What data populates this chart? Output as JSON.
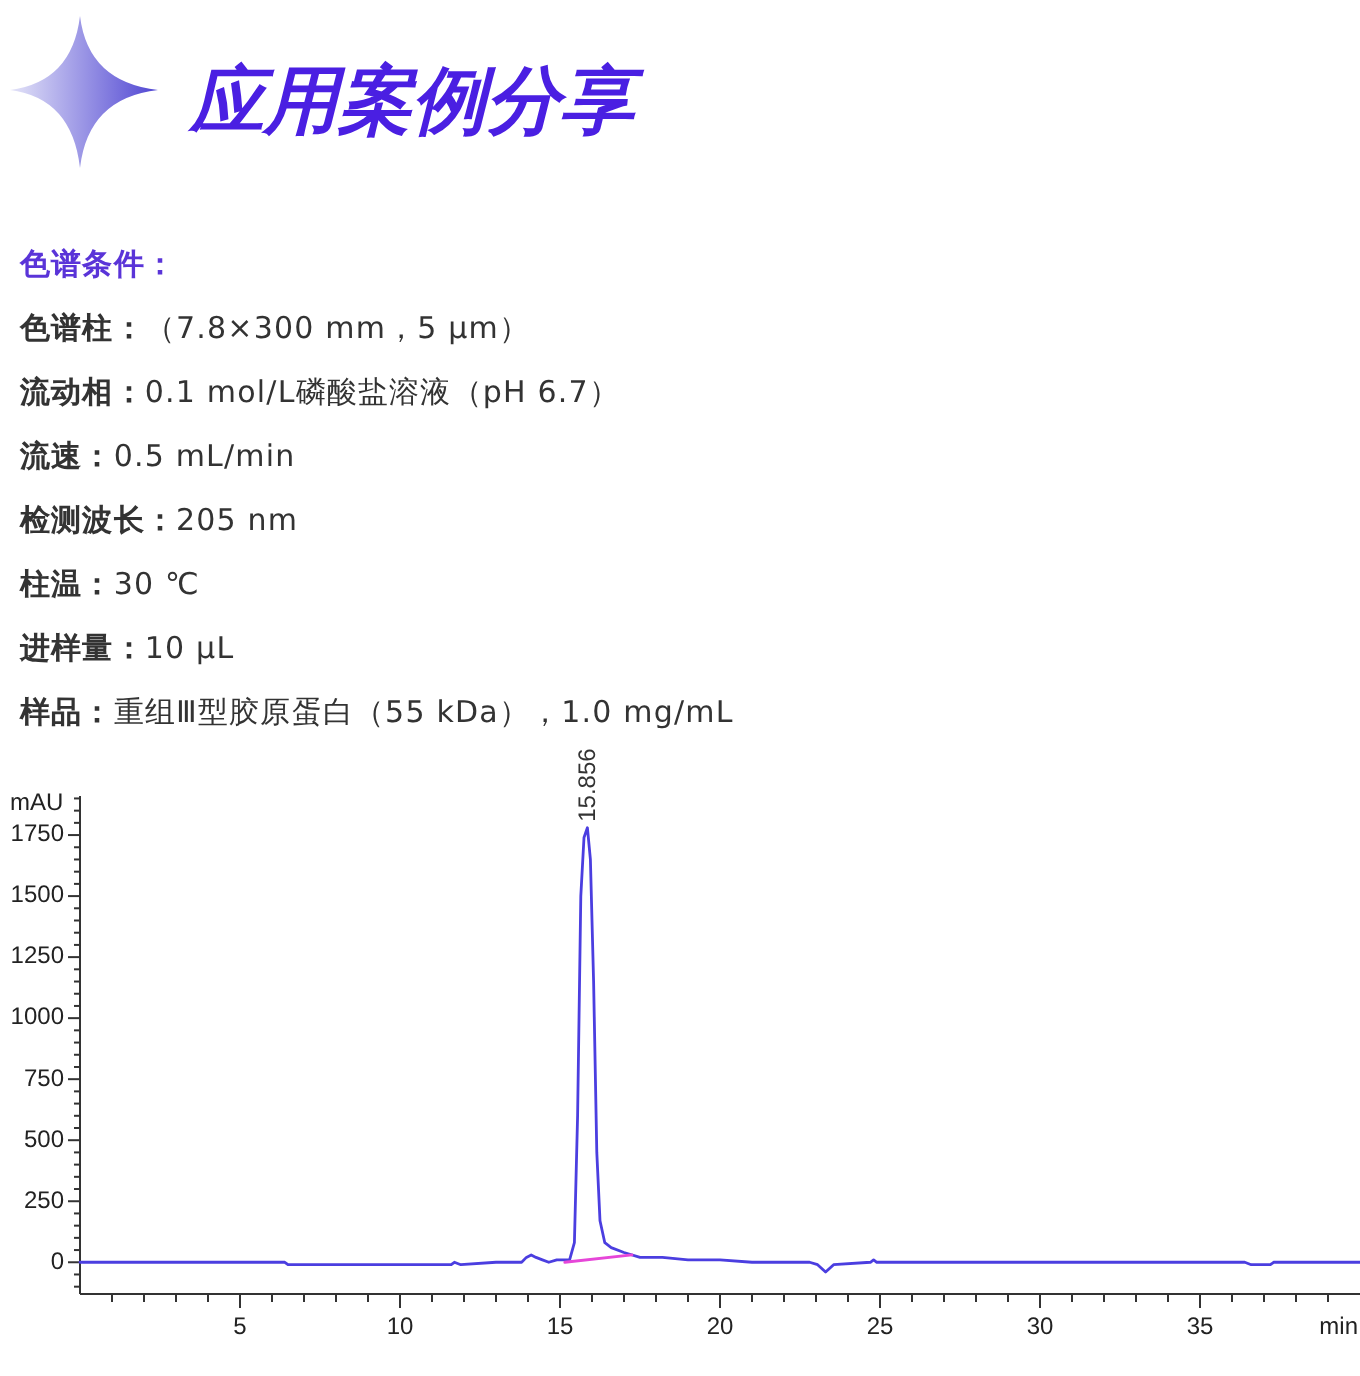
{
  "chart_data": {
    "type": "line",
    "title": "应用案例分享",
    "subtitle": "色谱条件：",
    "annotations": [
      "色谱柱：（7.8×300 mm，5 μm）",
      "流动相：0.1 mol/L磷酸盐溶液（pH 6.7）",
      "流速：0.5 mL/min",
      "检测波长：205 nm",
      "柱温：30 ℃",
      "进样量：10 μL",
      "样品：重组Ⅲ型胶原蛋白（55 kDa），1.0 mg/mL",
      {
        "text": "15.856",
        "x": 15.856,
        "y": 1780
      }
    ],
    "xlabel": "min",
    "ylabel": "mAU",
    "xlim": [
      0,
      40
    ],
    "ylim": [
      -130,
      1910
    ],
    "xticks": [
      {
        "value": 1,
        "label": null
      },
      {
        "value": 2,
        "label": null
      },
      {
        "value": 3,
        "label": null
      },
      {
        "value": 4,
        "label": null
      },
      5,
      {
        "value": 6,
        "label": null
      },
      {
        "value": 7,
        "label": null
      },
      {
        "value": 8,
        "label": null
      },
      {
        "value": 9,
        "label": null
      },
      10,
      {
        "value": 11,
        "label": null
      },
      {
        "value": 12,
        "label": null
      },
      {
        "value": 13,
        "label": null
      },
      {
        "value": 14,
        "label": null
      },
      15,
      {
        "value": 16,
        "label": null
      },
      {
        "value": 17,
        "label": null
      },
      {
        "value": 18,
        "label": null
      },
      {
        "value": 19,
        "label": null
      },
      20,
      {
        "value": 21,
        "label": null
      },
      {
        "value": 22,
        "label": null
      },
      {
        "value": 23,
        "label": null
      },
      {
        "value": 24,
        "label": null
      },
      25,
      {
        "value": 26,
        "label": null
      },
      {
        "value": 27,
        "label": null
      },
      {
        "value": 28,
        "label": null
      },
      {
        "value": 29,
        "label": null
      },
      30,
      {
        "value": 31,
        "label": null
      },
      {
        "value": 32,
        "label": null
      },
      {
        "value": 33,
        "label": null
      },
      {
        "value": 34,
        "label": null
      },
      35,
      {
        "value": 36,
        "label": null
      },
      {
        "value": 37,
        "label": null
      },
      {
        "value": 38,
        "label": null
      },
      {
        "value": 39,
        "label": null
      }
    ],
    "yticks": [
      {
        "value": -100,
        "label": null
      },
      {
        "value": -50,
        "label": null
      },
      0,
      {
        "value": 50,
        "label": null
      },
      {
        "value": 100,
        "label": null
      },
      {
        "value": 150,
        "label": null
      },
      {
        "value": 200,
        "label": null
      },
      250,
      {
        "value": 300,
        "label": null
      },
      {
        "value": 350,
        "label": null
      },
      {
        "value": 400,
        "label": null
      },
      {
        "value": 450,
        "label": null
      },
      500,
      {
        "value": 550,
        "label": null
      },
      {
        "value": 600,
        "label": null
      },
      {
        "value": 650,
        "label": null
      },
      {
        "value": 700,
        "label": null
      },
      750,
      {
        "value": 800,
        "label": null
      },
      {
        "value": 850,
        "label": null
      },
      {
        "value": 900,
        "label": null
      },
      {
        "value": 950,
        "label": null
      },
      1000,
      {
        "value": 1050,
        "label": null
      },
      {
        "value": 1100,
        "label": null
      },
      {
        "value": 1150,
        "label": null
      },
      {
        "value": 1200,
        "label": null
      },
      1250,
      {
        "value": 1300,
        "label": null
      },
      {
        "value": 1350,
        "label": null
      },
      {
        "value": 1400,
        "label": null
      },
      {
        "value": 1450,
        "label": null
      },
      1500,
      {
        "value": 1550,
        "label": null
      },
      {
        "value": 1600,
        "label": null
      },
      {
        "value": 1650,
        "label": null
      },
      {
        "value": 1700,
        "label": null
      },
      1750,
      {
        "value": 1800,
        "label": null
      },
      {
        "value": 1850,
        "label": null
      },
      {
        "value": 1900,
        "label": null
      }
    ],
    "series": [
      {
        "color": "#4b3ee0",
        "x": [
          0,
          6.4,
          6.5,
          11.6,
          11.7,
          11.9,
          13.0,
          13.5,
          13.8,
          13.95,
          14.1,
          14.25,
          14.45,
          14.65,
          14.9,
          15.1,
          15.2,
          15.3,
          15.45,
          15.55,
          15.65,
          15.75,
          15.856,
          15.95,
          16.05,
          16.15,
          16.25,
          16.4,
          16.6,
          17.0,
          17.5,
          18.2,
          19,
          20,
          21,
          22.8,
          23.05,
          23.3,
          23.55,
          24.7,
          24.8,
          24.9,
          36.4,
          36.6,
          37.2,
          37.3,
          40
        ],
        "values": [
          0,
          0,
          -10,
          -10,
          0,
          -10,
          0,
          0,
          0,
          20,
          30,
          20,
          10,
          0,
          10,
          10,
          10,
          10,
          80,
          600,
          1500,
          1740,
          1780,
          1650,
          1150,
          450,
          170,
          80,
          60,
          40,
          20,
          20,
          10,
          10,
          0,
          0,
          -10,
          -40,
          -10,
          0,
          10,
          0,
          0,
          -10,
          -10,
          0,
          0
        ]
      },
      {
        "color": "#e646d8",
        "x": [
          15.15,
          17.25
        ],
        "values": [
          0,
          30
        ]
      }
    ]
  }
}
